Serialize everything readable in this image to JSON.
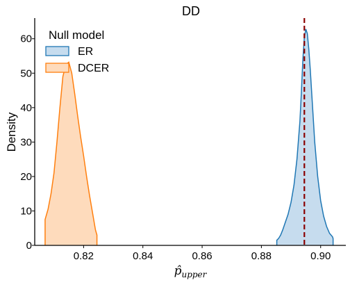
{
  "chart_data": {
    "type": "area",
    "title": "DD",
    "xlabel_main": "p̂",
    "xlabel_sub": "upper",
    "ylabel": "Density",
    "xlim": [
      0.8035,
      0.9085
    ],
    "ylim": [
      0,
      66
    ],
    "xticks": [
      0.82,
      0.84,
      0.86,
      0.88,
      0.9
    ],
    "xtick_labels": [
      "0.82",
      "0.84",
      "0.86",
      "0.88",
      "0.90"
    ],
    "yticks": [
      0,
      10,
      20,
      30,
      40,
      50,
      60
    ],
    "ytick_labels": [
      "0",
      "10",
      "20",
      "30",
      "40",
      "50",
      "60"
    ],
    "reference_line": {
      "x": 0.8945,
      "color": "#8b0000",
      "style": "dashed"
    },
    "legend": {
      "title": "Null model",
      "placement": "top-left"
    },
    "series": [
      {
        "name": "ER",
        "line_color": "#1f77b4",
        "fill_color": "#c6dcee",
        "x": [
          0.8852,
          0.8858,
          0.8865,
          0.8872,
          0.888,
          0.889,
          0.89,
          0.891,
          0.892,
          0.893,
          0.8935,
          0.894,
          0.8945,
          0.895,
          0.8955,
          0.896,
          0.8965,
          0.897,
          0.8975,
          0.898,
          0.899,
          0.9,
          0.901,
          0.902,
          0.903,
          0.904,
          0.9042
        ],
        "y": [
          1.5,
          2.0,
          3.0,
          4.5,
          6.5,
          9.0,
          12.5,
          17.5,
          25.0,
          36.0,
          44.5,
          54.0,
          60.5,
          62.8,
          61.5,
          57.0,
          51.0,
          44.0,
          37.0,
          30.0,
          20.0,
          13.0,
          8.5,
          5.5,
          3.5,
          2.5,
          2.0
        ]
      },
      {
        "name": "DCER",
        "line_color": "#ff7f0e",
        "fill_color": "#fedbbc",
        "x": [
          0.807,
          0.808,
          0.809,
          0.81,
          0.811,
          0.812,
          0.813,
          0.814,
          0.815,
          0.816,
          0.817,
          0.818,
          0.819,
          0.82,
          0.821,
          0.822,
          0.823,
          0.824,
          0.8245
        ],
        "y": [
          7.5,
          10.5,
          15.0,
          21.0,
          30.0,
          40.0,
          49.0,
          52.5,
          53.2,
          50.0,
          44.0,
          37.5,
          31.5,
          26.0,
          20.0,
          14.5,
          9.5,
          4.5,
          3.0
        ]
      }
    ]
  }
}
